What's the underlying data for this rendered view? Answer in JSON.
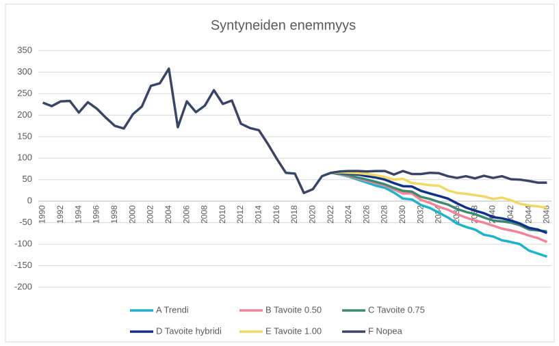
{
  "chart_data": {
    "type": "line",
    "title": "Syntyneiden enemmyys",
    "categories": [
      "1990",
      null,
      "1992",
      null,
      "1994",
      null,
      "1996",
      null,
      "1998",
      null,
      "2000",
      null,
      "2002",
      null,
      "2004",
      null,
      "2006",
      null,
      "2008",
      null,
      "2010",
      null,
      "2012",
      null,
      "2014",
      null,
      "2016",
      null,
      "2018",
      null,
      "2020",
      null,
      "2022",
      null,
      "2024",
      null,
      "2026",
      null,
      "2028",
      null,
      "2030",
      null,
      "2032",
      null,
      "2034",
      null,
      "2036",
      null,
      "2038",
      null,
      "2040",
      null,
      "2042",
      null,
      "2044",
      null,
      "2046"
    ],
    "ylim": [
      -200,
      350
    ],
    "yticks": [
      -200,
      -150,
      -100,
      -50,
      0,
      50,
      100,
      150,
      200,
      250,
      300,
      350
    ],
    "grid": true,
    "series": [
      {
        "name": "A Trendi",
        "color": "#1bb4cc",
        "values": [
          null,
          null,
          null,
          null,
          null,
          null,
          null,
          null,
          null,
          null,
          null,
          null,
          null,
          null,
          null,
          null,
          null,
          null,
          null,
          null,
          null,
          null,
          null,
          null,
          null,
          null,
          null,
          null,
          null,
          null,
          null,
          null,
          66,
          62,
          57,
          50,
          43,
          36,
          31,
          20,
          6,
          4,
          -9,
          -16,
          -27,
          -38,
          -52,
          -60,
          -66,
          -78,
          -82,
          -91,
          -95,
          -100,
          -115,
          -122,
          -129
        ]
      },
      {
        "name": "B Tavoite 0.50",
        "color": "#f2849a",
        "values": [
          null,
          null,
          null,
          null,
          null,
          null,
          null,
          null,
          null,
          null,
          null,
          null,
          null,
          null,
          null,
          null,
          null,
          null,
          null,
          null,
          null,
          null,
          null,
          null,
          null,
          null,
          null,
          null,
          null,
          null,
          null,
          null,
          66,
          63,
          58,
          53,
          47,
          42,
          36,
          27,
          18,
          18,
          3,
          -4,
          -13,
          -20,
          -30,
          -38,
          -45,
          -50,
          -57,
          -64,
          -68,
          -73,
          -80,
          -86,
          -95
        ]
      },
      {
        "name": "C Tavoite 0.75",
        "color": "#3d8a72",
        "values": [
          null,
          null,
          null,
          null,
          null,
          null,
          null,
          null,
          null,
          null,
          null,
          null,
          null,
          null,
          null,
          null,
          null,
          null,
          null,
          null,
          null,
          null,
          null,
          null,
          null,
          null,
          null,
          null,
          null,
          null,
          null,
          null,
          66,
          64,
          60,
          55,
          50,
          45,
          39,
          31,
          24,
          22,
          10,
          5,
          -2,
          -8,
          -18,
          -25,
          -30,
          -38,
          -45,
          -47,
          -50,
          -56,
          -66,
          -68,
          -70
        ]
      },
      {
        "name": "D Tavoite hybridi",
        "color": "#10308c",
        "values": [
          null,
          null,
          null,
          null,
          null,
          null,
          null,
          null,
          null,
          null,
          null,
          null,
          null,
          null,
          null,
          null,
          null,
          null,
          null,
          null,
          null,
          null,
          null,
          null,
          null,
          null,
          null,
          null,
          null,
          null,
          null,
          null,
          66,
          66,
          64,
          62,
          58,
          55,
          50,
          42,
          35,
          34,
          24,
          18,
          12,
          6,
          -5,
          -15,
          -22,
          -28,
          -37,
          -40,
          -45,
          -52,
          -62,
          -66,
          -74
        ]
      },
      {
        "name": "E Tavoite 1.00",
        "color": "#f1d862",
        "values": [
          null,
          null,
          null,
          null,
          null,
          null,
          null,
          null,
          null,
          null,
          null,
          null,
          null,
          null,
          null,
          null,
          null,
          null,
          null,
          null,
          null,
          null,
          null,
          null,
          null,
          null,
          null,
          null,
          null,
          null,
          null,
          null,
          66,
          67,
          66,
          65,
          63,
          60,
          56,
          50,
          52,
          42,
          40,
          37,
          36,
          25,
          19,
          17,
          14,
          11,
          5,
          8,
          2,
          -6,
          -10,
          -12,
          -16
        ]
      },
      {
        "name": "F Nopea",
        "color": "#394566",
        "values": [
          229,
          221,
          232,
          233,
          206,
          230,
          215,
          194,
          175,
          169,
          202,
          220,
          268,
          274,
          308,
          172,
          232,
          207,
          222,
          258,
          226,
          234,
          180,
          170,
          165,
          133,
          98,
          66,
          64,
          19,
          28,
          58,
          66,
          69,
          70,
          70,
          69,
          70,
          70,
          62,
          70,
          63,
          63,
          66,
          65,
          58,
          54,
          58,
          53,
          59,
          54,
          58,
          51,
          50,
          47,
          43,
          43
        ]
      }
    ]
  }
}
